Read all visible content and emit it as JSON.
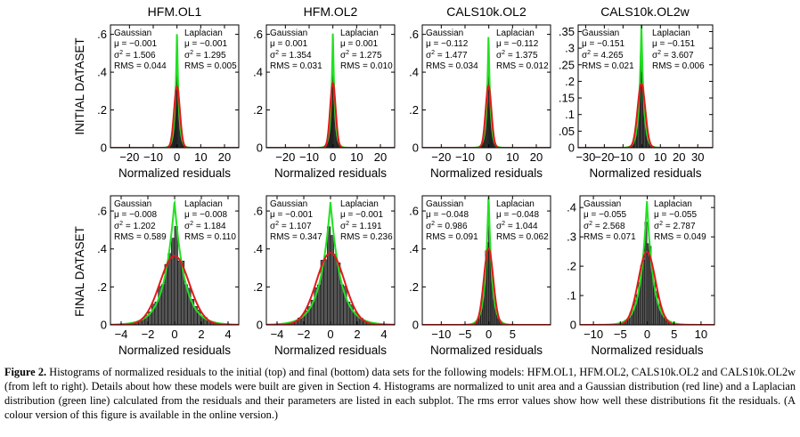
{
  "column_titles": [
    "HFM.OL1",
    "HFM.OL2",
    "CALS10k.OL2",
    "CALS10k.OL2w"
  ],
  "row_labels": [
    "INITIAL DATASET",
    "FINAL DATASET"
  ],
  "legend_text": {
    "gaussian": "Gaussian",
    "laplacian": "Laplacian"
  },
  "colors": {
    "gaussian_curve": "#e01a1a",
    "laplacian_curve": "#22e022",
    "histogram_bars": "#555555"
  },
  "caption": {
    "label": "Figure 2.",
    "text": " Histograms of normalized residuals to the initial (top) and final (bottom) data sets for the following models: HFM.OL1, HFM.OL2, CALS10k.OL2 and CALS10k.OL2w (from left to right). Details about how these models were built are given in Section 4. Histograms are normalized to unit area and a Gaussian distribution (red line) and a Laplacian distribution (green line) calculated from the residuals and their parameters are listed in each subplot. The rms error values show how well these distributions fit the residuals. (A colour version of this figure is available in the online version.)"
  },
  "chart_data": [
    {
      "type": "bar",
      "panel": "initial-hfm-ol1",
      "xlabel": "Normalized residuals",
      "xlim": [
        -28,
        26
      ],
      "xticks": [
        -20,
        -10,
        0,
        10,
        20
      ],
      "ylim": [
        0,
        0.65
      ],
      "yticks": [
        0,
        0.2,
        0.4,
        0.6
      ],
      "grid": false,
      "gaussian": {
        "mu": "μ = −0.001",
        "sigma2": "1.506",
        "rms": "RMS = 0.044"
      },
      "laplacian": {
        "mu": "μ = −0.001",
        "sigma2": "1.295",
        "rms": "RMS = 0.005"
      },
      "fit": {
        "mu": -0.001,
        "gaussian_var": 1.506,
        "laplacian_var": 1.295
      }
    },
    {
      "type": "bar",
      "panel": "initial-hfm-ol2",
      "xlabel": "Normalized residuals",
      "xlim": [
        -28,
        26
      ],
      "xticks": [
        -20,
        -10,
        0,
        10,
        20
      ],
      "ylim": [
        0,
        0.65
      ],
      "yticks": [
        0,
        0.2,
        0.4,
        0.6
      ],
      "grid": false,
      "gaussian": {
        "mu": "μ = 0.001",
        "sigma2": "1.354",
        "rms": "RMS = 0.031"
      },
      "laplacian": {
        "mu": "μ = 0.001",
        "sigma2": "1.275",
        "rms": "RMS = 0.010"
      },
      "fit": {
        "mu": 0.001,
        "gaussian_var": 1.354,
        "laplacian_var": 1.275
      }
    },
    {
      "type": "bar",
      "panel": "initial-cals10k-ol2",
      "xlabel": "Normalized residuals",
      "xlim": [
        -28,
        26
      ],
      "xticks": [
        -20,
        -10,
        0,
        10,
        20
      ],
      "ylim": [
        0,
        0.65
      ],
      "yticks": [
        0,
        0.2,
        0.4,
        0.6
      ],
      "grid": false,
      "gaussian": {
        "mu": "μ = −0.112",
        "sigma2": "1.477",
        "rms": "RMS = 0.034"
      },
      "laplacian": {
        "mu": "μ = −0.112",
        "sigma2": "1.375",
        "rms": "RMS = 0.012"
      },
      "fit": {
        "mu": -0.112,
        "gaussian_var": 1.477,
        "laplacian_var": 1.375
      }
    },
    {
      "type": "bar",
      "panel": "initial-cals10k-ol2w",
      "xlabel": "Normalized residuals",
      "xlim": [
        -34,
        38
      ],
      "xticks": [
        -30,
        -20,
        -10,
        0,
        10,
        20,
        30
      ],
      "ylim": [
        0,
        0.37
      ],
      "yticks": [
        0,
        0.05,
        0.1,
        0.15,
        0.2,
        0.25,
        0.3,
        0.35
      ],
      "grid": false,
      "gaussian": {
        "mu": "μ = −0.151",
        "sigma2": "4.265",
        "rms": "RMS = 0.021"
      },
      "laplacian": {
        "mu": "μ = −0.151",
        "sigma2": "3.607",
        "rms": "RMS = 0.006"
      },
      "fit": {
        "mu": -0.151,
        "gaussian_var": 4.265,
        "laplacian_var": 3.607
      }
    },
    {
      "type": "bar",
      "panel": "final-hfm-ol1",
      "xlabel": "Normalized residuals",
      "xlim": [
        -4.8,
        4.8
      ],
      "xticks": [
        -4,
        -2,
        0,
        2,
        4
      ],
      "ylim": [
        0,
        0.68
      ],
      "yticks": [
        0,
        0.2,
        0.4,
        0.6
      ],
      "grid": false,
      "gaussian": {
        "mu": "μ = −0.008",
        "sigma2": "1.202",
        "rms": "RMS = 0.589"
      },
      "laplacian": {
        "mu": "μ = −0.008",
        "sigma2": "1.184",
        "rms": "RMS = 0.110"
      },
      "fit": {
        "mu": -0.008,
        "gaussian_var": 1.202,
        "laplacian_var": 1.184
      }
    },
    {
      "type": "bar",
      "panel": "final-hfm-ol2",
      "xlabel": "Normalized residuals",
      "xlim": [
        -4.8,
        4.8
      ],
      "xticks": [
        -4,
        -2,
        0,
        2,
        4
      ],
      "ylim": [
        0,
        0.68
      ],
      "yticks": [
        0,
        0.2,
        0.4,
        0.6
      ],
      "grid": false,
      "gaussian": {
        "mu": "μ = −0.001",
        "sigma2": "1.107",
        "rms": "RMS = 0.347"
      },
      "laplacian": {
        "mu": "μ = −0.001",
        "sigma2": "1.191",
        "rms": "RMS = 0.236"
      },
      "fit": {
        "mu": -0.001,
        "gaussian_var": 1.107,
        "laplacian_var": 1.191
      }
    },
    {
      "type": "bar",
      "panel": "final-cals10k-ol2",
      "xlabel": "Normalized residuals",
      "xlim": [
        -14,
        13
      ],
      "xticks": [
        -10,
        -5,
        0,
        5
      ],
      "ylim": [
        0,
        0.68
      ],
      "yticks": [
        0,
        0.2,
        0.4,
        0.6
      ],
      "grid": false,
      "gaussian": {
        "mu": "μ = −0.048",
        "sigma2": "0.986",
        "rms": "RMS = 0.091"
      },
      "laplacian": {
        "mu": "μ = −0.048",
        "sigma2": "1.044",
        "rms": "RMS = 0.062"
      },
      "fit": {
        "mu": -0.048,
        "gaussian_var": 0.986,
        "laplacian_var": 1.044
      }
    },
    {
      "type": "bar",
      "panel": "final-cals10k-ol2w",
      "xlabel": "Normalized residuals",
      "xlim": [
        -12.5,
        12.5
      ],
      "xticks": [
        -10,
        -5,
        0,
        5,
        10
      ],
      "ylim": [
        0,
        0.44
      ],
      "yticks": [
        0,
        0.1,
        0.2,
        0.3,
        0.4
      ],
      "grid": false,
      "gaussian": {
        "mu": "μ = −0.055",
        "sigma2": "2.568",
        "rms": "RMS = 0.071"
      },
      "laplacian": {
        "mu": "μ = −0.055",
        "sigma2": "2.787",
        "rms": "RMS = 0.049"
      },
      "fit": {
        "mu": -0.055,
        "gaussian_var": 2.568,
        "laplacian_var": 2.787
      }
    }
  ]
}
